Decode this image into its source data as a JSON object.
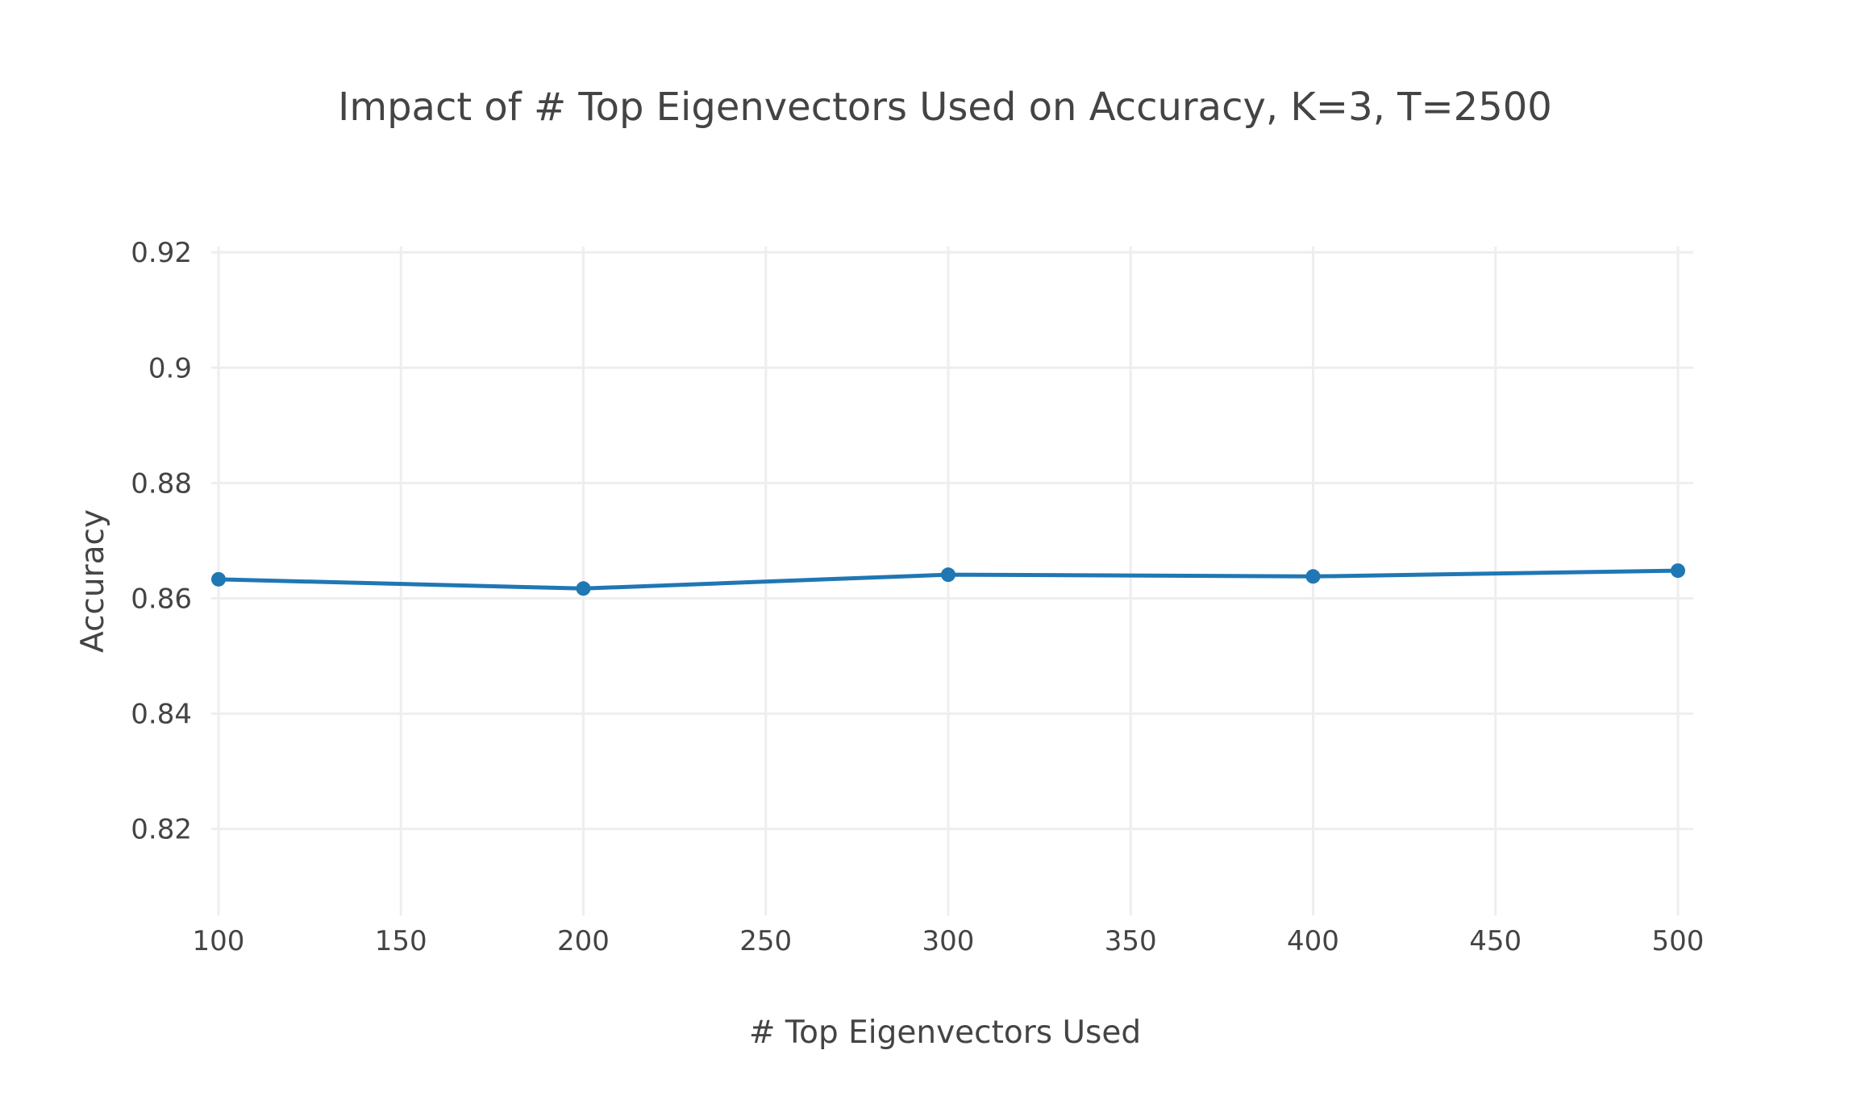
{
  "chart_data": {
    "type": "line",
    "title": "Impact of # Top Eigenvectors Used on Accuracy, K=3, T=2500",
    "xlabel": "# Top Eigenvectors Used",
    "ylabel": "Accuracy",
    "xlim": [
      100,
      500
    ],
    "ylim": [
      0.805,
      0.921
    ],
    "x_ticks": [
      100,
      150,
      200,
      250,
      300,
      350,
      400,
      450,
      500
    ],
    "x_tick_labels": [
      "100",
      "150",
      "200",
      "250",
      "300",
      "350",
      "400",
      "450",
      "500"
    ],
    "y_ticks": [
      0.82,
      0.84,
      0.86,
      0.88,
      0.9,
      0.92
    ],
    "y_tick_labels": [
      "0.82",
      "0.84",
      "0.86",
      "0.88",
      "0.9",
      "0.92"
    ],
    "grid": true,
    "legend": "none",
    "series": [
      {
        "color": "#1f77b4",
        "x": [
          100,
          200,
          300,
          400,
          500
        ],
        "y": [
          0.8633,
          0.8617,
          0.8641,
          0.8638,
          0.8648
        ]
      }
    ]
  }
}
